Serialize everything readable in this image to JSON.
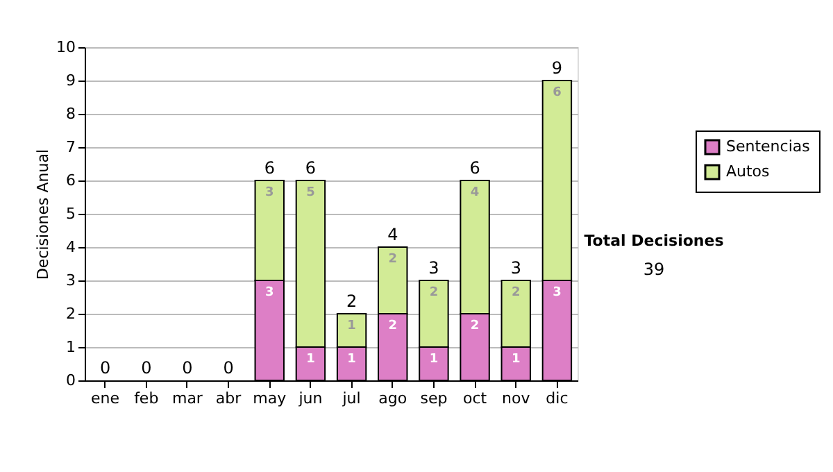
{
  "chart_data": {
    "type": "bar",
    "stacked": true,
    "ylabel": "Decisiones Anual",
    "categories": [
      "ene",
      "feb",
      "mar",
      "abr",
      "may",
      "jun",
      "jul",
      "ago",
      "sep",
      "oct",
      "nov",
      "dic"
    ],
    "series": [
      {
        "name": "Sentencias",
        "color": "#dd7fc6",
        "values": [
          0,
          0,
          0,
          0,
          3,
          1,
          1,
          2,
          1,
          2,
          1,
          3
        ],
        "value_labels": [
          null,
          null,
          null,
          null,
          "3",
          "1",
          "1",
          "2",
          "1",
          "2",
          "1",
          "3"
        ]
      },
      {
        "name": "Autos",
        "color": "#d2eb96",
        "values": [
          0,
          0,
          0,
          0,
          3,
          5,
          1,
          2,
          2,
          4,
          2,
          6
        ],
        "value_labels": [
          null,
          null,
          null,
          null,
          "3",
          "5",
          "1",
          "2",
          "2",
          "4",
          "2",
          "6"
        ]
      }
    ],
    "totals": [
      "0",
      "0",
      "0",
      "0",
      "6",
      "6",
      "2",
      "4",
      "3",
      "6",
      "3",
      "9"
    ],
    "ylim": [
      0,
      10
    ],
    "yticks": [
      0,
      1,
      2,
      3,
      4,
      5,
      6,
      7,
      8,
      9,
      10
    ],
    "grid": "y",
    "legend": "right",
    "annotations": [
      "Total Decisiones",
      "39"
    ]
  }
}
